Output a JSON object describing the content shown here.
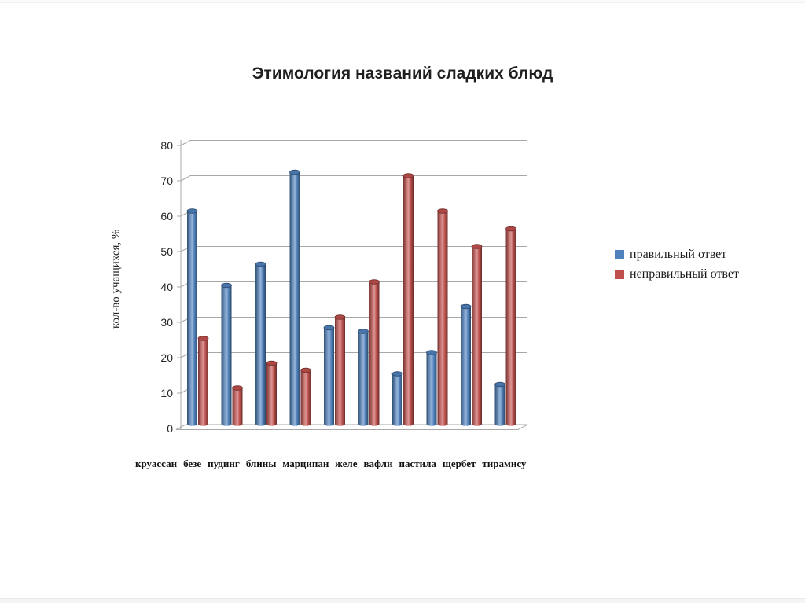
{
  "title": "Этимология названий сладких блюд",
  "chart_data": {
    "type": "bar",
    "style": "3d-cylinder",
    "title": "Этимология названий сладких блюд",
    "categories": [
      "круассан",
      "безе",
      "пудинг",
      "блины",
      "марципан",
      "желе",
      "вафли",
      "пастила",
      "щербет",
      "тирамису"
    ],
    "series": [
      {
        "name": "правильный ответ",
        "color": "#4F81BD",
        "values": [
          60,
          39,
          45,
          71,
          27,
          26,
          14,
          20,
          33,
          11
        ]
      },
      {
        "name": "неправильный ответ",
        "color": "#C0504D",
        "values": [
          24,
          10,
          17,
          15,
          30,
          40,
          70,
          60,
          50,
          55
        ]
      }
    ],
    "xlabel": "",
    "ylabel": "кол-во учащихся, %",
    "ylim": [
      0,
      80
    ],
    "ytick_step": 10,
    "ytick_labels": [
      "0",
      "10",
      "20",
      "30",
      "40",
      "50",
      "60",
      "70",
      "80"
    ],
    "grid": true,
    "legend_position": "right"
  }
}
